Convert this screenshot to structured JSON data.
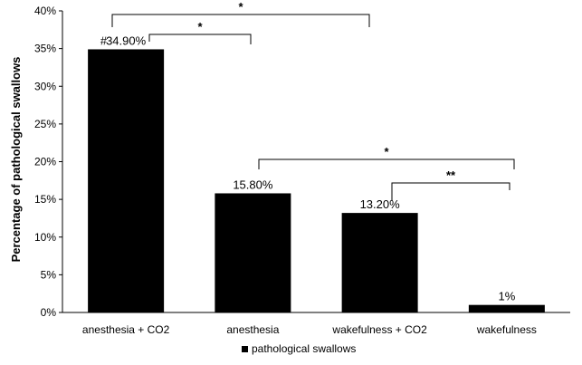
{
  "chart_data": {
    "type": "bar",
    "title": "",
    "xlabel": "",
    "ylabel": "Percentage of pathological swallows",
    "ylim": [
      0,
      40
    ],
    "yticks": [
      "0%",
      "5%",
      "10%",
      "15%",
      "20%",
      "25%",
      "30%",
      "35%",
      "40%"
    ],
    "grid": false,
    "legend_position": "bottom",
    "categories": [
      "anesthesia + CO2",
      "anesthesia",
      "wakefulness + CO2",
      "wakefulness"
    ],
    "series": [
      {
        "name": "pathological swallows",
        "values": [
          34.9,
          15.8,
          13.2,
          1
        ],
        "labels": [
          "34.90%",
          "15.80%",
          "13.20%",
          "1%"
        ],
        "color": "#000000"
      }
    ],
    "marker_symbol": "#",
    "marker_category": 0,
    "significance": [
      {
        "from": 0,
        "to": 2,
        "label": "*"
      },
      {
        "from": 0,
        "to": 1,
        "label": "*"
      },
      {
        "from": 1,
        "to": 3,
        "label": "*"
      },
      {
        "from": 2,
        "to": 3,
        "label": "**"
      }
    ]
  }
}
